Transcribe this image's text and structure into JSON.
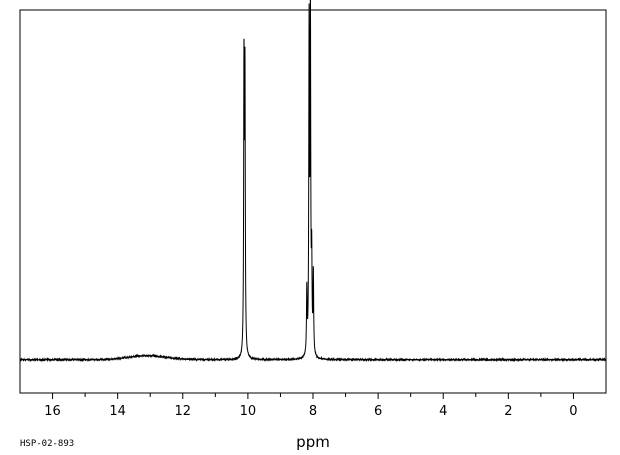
{
  "chart_data": {
    "type": "line",
    "xlabel": "ppm",
    "ylabel": "",
    "title": "",
    "x_reversed": true,
    "xlim": [
      17.0,
      -1.0
    ],
    "ylim": [
      -0.1,
      1.05
    ],
    "x_ticks": [
      16,
      14,
      12,
      10,
      8,
      6,
      4,
      2,
      0
    ],
    "x_tick_labels": [
      "16",
      "14",
      "12",
      "10",
      "8",
      "6",
      "4",
      "2",
      "0"
    ],
    "x_minor_ticks": [
      15,
      13,
      11,
      9,
      7,
      5,
      3,
      1
    ],
    "grid": false,
    "legend": "none",
    "baseline": 0.0,
    "peaks": [
      {
        "ppm": 10.12,
        "intensity": 0.86
      },
      {
        "ppm": 10.09,
        "intensity": 0.82
      },
      {
        "ppm": 8.19,
        "intensity": 0.19
      },
      {
        "ppm": 8.12,
        "intensity": 0.97
      },
      {
        "ppm": 8.08,
        "intensity": 1.03
      },
      {
        "ppm": 8.04,
        "intensity": 0.27
      },
      {
        "ppm": 7.99,
        "intensity": 0.24
      }
    ],
    "broad_features": [
      {
        "ppm": 13.1,
        "intensity": 0.012
      }
    ],
    "line_color": "#000000",
    "sample_code": "HSP-02-893"
  }
}
